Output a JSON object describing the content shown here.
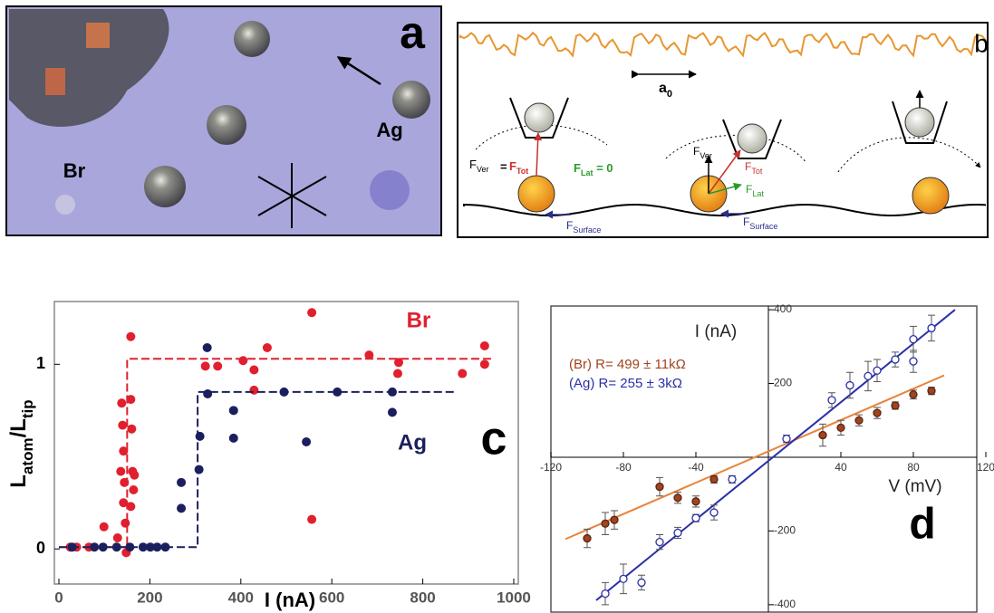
{
  "panel_a": {
    "label": "a",
    "ag": "Ag",
    "br": "Br"
  },
  "panel_b": {
    "label": "b",
    "lattice": [
      "a",
      "0"
    ],
    "d1_ver": [
      "F",
      "Ver"
    ],
    "d1_eq": "=",
    "d1_tot": [
      "F",
      "Tot"
    ],
    "d1_lat": [
      "F",
      "Lat",
      " = 0"
    ],
    "d1_surface": [
      "F",
      "Surface"
    ],
    "d2_ver": [
      "F",
      "Ver"
    ],
    "d2_tot": [
      "F",
      "Tot"
    ],
    "d2_lat": [
      "F",
      "Lat"
    ],
    "d2_surface": [
      "F",
      "Surface"
    ]
  },
  "chart_data": [
    {
      "type": "scatter",
      "panel_label": "c",
      "xlabel": "I (nA)",
      "ylabel": [
        "L",
        "atom",
        "/L",
        "tip"
      ],
      "xlim": [
        -10,
        1010
      ],
      "ylim": [
        -0.19,
        1.34
      ],
      "xticks": [
        0,
        200,
        400,
        600,
        800,
        1000
      ],
      "yticks": [
        0,
        1
      ],
      "series": [
        {
          "name": "Br",
          "color": "#e0202e",
          "marker": "filled",
          "x": [
            25,
            39,
            66,
            99,
            129,
            136,
            138,
            140,
            142,
            142,
            144,
            146,
            148,
            158,
            160,
            162,
            164,
            158,
            166,
            158,
            322,
            349,
            405,
            429,
            429,
            458,
            556,
            556,
            682,
            747,
            745,
            887,
            936,
            936
          ],
          "values": [
            0.01,
            0.01,
            0.01,
            0.12,
            0.06,
            0.42,
            0.79,
            0.67,
            0.53,
            0.25,
            0.36,
            0.14,
            -0.02,
            0.81,
            0.65,
            0.42,
            0.32,
            1.15,
            0.4,
            0.23,
            0.99,
            0.99,
            1.02,
            0.97,
            0.86,
            1.09,
            1.28,
            0.16,
            1.05,
            1.01,
            0.95,
            0.95,
            1.1,
            1.0
          ],
          "fit": {
            "x": [
              0,
              150,
              150,
              950
            ],
            "y": [
              0.01,
              0.01,
              1.03,
              1.03
            ]
          }
        },
        {
          "name": "Ag",
          "color": "#1c1f5e",
          "marker": "filled",
          "x": [
            29,
            78,
            97,
            127,
            156,
            185,
            201,
            216,
            234,
            269,
            269,
            308,
            310,
            326,
            327,
            384,
            384,
            495,
            612,
            544,
            733,
            733
          ],
          "values": [
            0.01,
            0.01,
            0.01,
            0.01,
            0.01,
            0.01,
            0.01,
            0.01,
            0.01,
            0.36,
            0.22,
            0.43,
            0.61,
            1.09,
            0.84,
            0.75,
            0.6,
            0.85,
            0.85,
            0.58,
            0.85,
            0.74
          ],
          "fit": {
            "x": [
              0,
              305,
              305,
              870
            ],
            "y": [
              0.01,
              0.01,
              0.85,
              0.85
            ]
          }
        }
      ]
    },
    {
      "type": "scatter",
      "panel_label": "d",
      "xlabel": "V (mV)",
      "ylabel": "I (nA)",
      "axes_cross_at_zero": true,
      "xlim": [
        -120,
        115
      ],
      "ylim": [
        -420,
        410
      ],
      "xticks": [
        -120,
        -80,
        -40,
        40,
        80,
        120
      ],
      "yticks": [
        -400,
        -200,
        200,
        400
      ],
      "annotations": [
        "(Br)  R= 499  ± 11kΩ",
        "(Ag)  R= 255  ± 3kΩ"
      ],
      "series": [
        {
          "color": "#a0441f",
          "line_color": "#e8843a",
          "marker": "filled",
          "x": [
            -100,
            -90,
            -85,
            -60,
            -50,
            -40,
            -30,
            30,
            40,
            50,
            60,
            70,
            80,
            90
          ],
          "values": [
            -220,
            -180,
            -170,
            -80,
            -110,
            -120,
            -60,
            60,
            80,
            100,
            120,
            140,
            170,
            180
          ],
          "errors": [
            25,
            30,
            25,
            25,
            15,
            15,
            10,
            30,
            20,
            15,
            15,
            10,
            12,
            10
          ],
          "fit": {
            "x": [
              -112,
              97
            ],
            "y": [
              -222,
              222
            ]
          }
        },
        {
          "color": "#2a2fa8",
          "line_color": "#2a2fa8",
          "marker": "open",
          "x": [
            -90,
            -80,
            -70,
            -60,
            -50,
            -40,
            -30,
            -20,
            10,
            35,
            45,
            55,
            60,
            70,
            80,
            80,
            90
          ],
          "values": [
            -370,
            -330,
            -340,
            -230,
            -205,
            -165,
            -150,
            -60,
            50,
            155,
            195,
            220,
            235,
            265,
            320,
            260,
            350
          ],
          "errors": [
            30,
            40,
            20,
            20,
            15,
            10,
            20,
            10,
            10,
            20,
            35,
            40,
            30,
            20,
            35,
            30,
            35
          ],
          "fit": {
            "x": [
              -95,
              103
            ],
            "y": [
              -388,
              400
            ]
          }
        }
      ]
    }
  ]
}
